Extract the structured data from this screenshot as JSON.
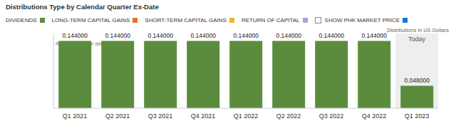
{
  "chart_data": {
    "type": "bar",
    "title": "Distributions Type by Calendar Quarter Ex-Date",
    "subtitle": "Distributions in US Dollars",
    "annotations": [
      "Rollover chart for details",
      "Today",
      "SHOW PHK MARKET PRICE"
    ],
    "categories": [
      "Q1 2021",
      "Q2 2021",
      "Q3 2021",
      "Q4 2021",
      "Q1 2022",
      "Q2 2022",
      "Q3 2022",
      "Q4 2022",
      "Q1 2023"
    ],
    "series": [
      {
        "name": "DIVIDENDS",
        "color": "#5b8c3e",
        "values": [
          0.144,
          0.144,
          0.144,
          0.144,
          0.144,
          0.144,
          0.144,
          0.144,
          0.048
        ],
        "value_labels": [
          "0.144000",
          "0.144000",
          "0.144000",
          "0.144000",
          "0.144000",
          "0.144000",
          "0.144000",
          "0.144000",
          "0.048000"
        ]
      },
      {
        "name": "LONG-TERM CAPITAL GAINS",
        "color": "#e8702a",
        "values": [
          0,
          0,
          0,
          0,
          0,
          0,
          0,
          0,
          0
        ]
      },
      {
        "name": "SHORT-TERM CAPITAL GAINS",
        "color": "#f5b52e",
        "values": [
          0,
          0,
          0,
          0,
          0,
          0,
          0,
          0,
          0
        ]
      },
      {
        "name": "RETURN OF CAPITAL",
        "color": "#b39ddb",
        "values": [
          0,
          0,
          0,
          0,
          0,
          0,
          0,
          0,
          0
        ]
      }
    ],
    "ylim": [
      0,
      0.16
    ],
    "stacked": true,
    "data_labels": true,
    "tick_labels": "x",
    "legend": "top"
  }
}
